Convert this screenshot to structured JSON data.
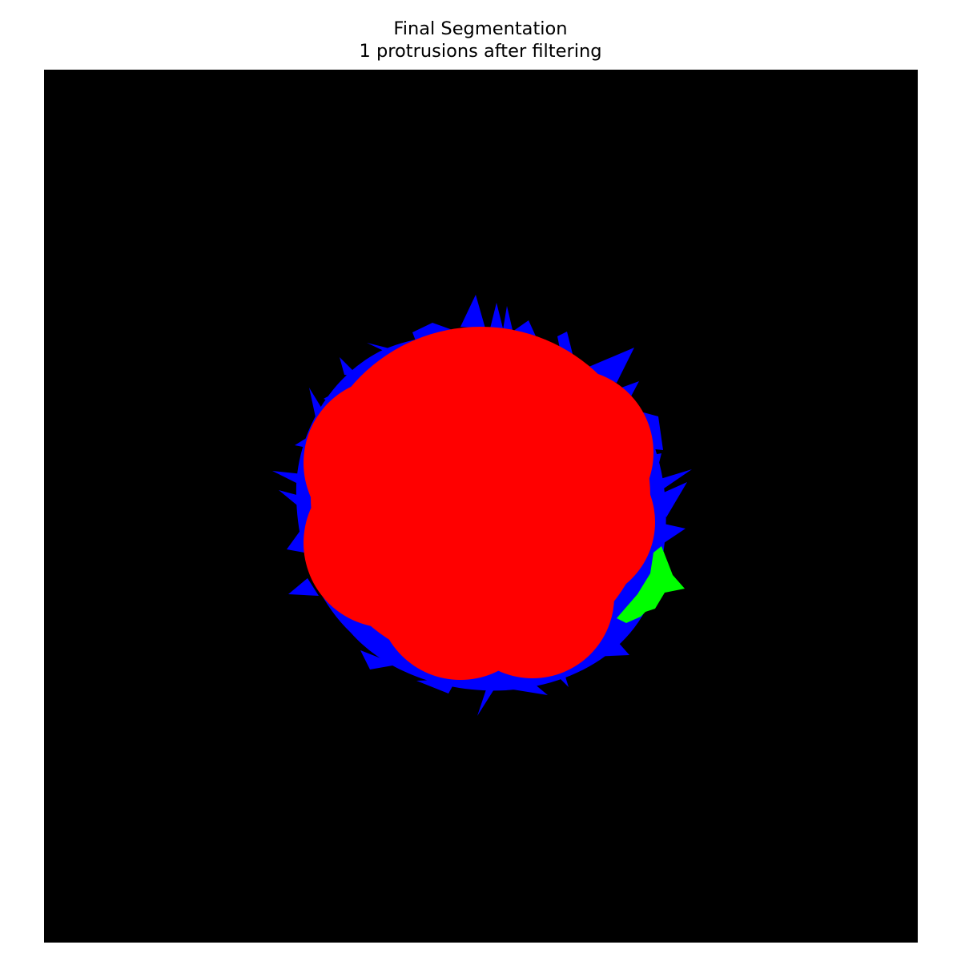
{
  "figure": {
    "title": "Final Segmentation",
    "subtitle": "1 protrusions after filtering"
  },
  "colors": {
    "background": "#000000",
    "cell_body": "#ff0000",
    "rejected_protrusions": "#0000ff",
    "kept_protrusion": "#00ff00"
  },
  "segmentation": {
    "protrusion_count": 1
  }
}
